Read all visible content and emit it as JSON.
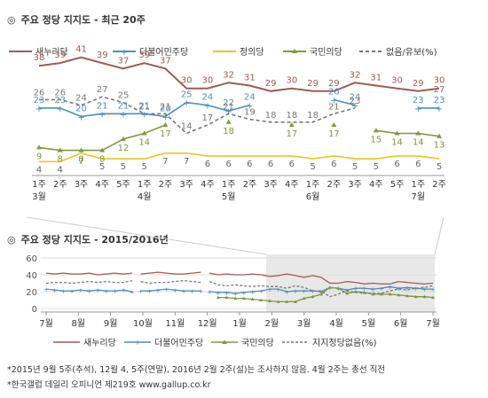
{
  "colors": {
    "saenuri": "#a05a55",
    "minjoo": "#4f8fbf",
    "justice": "#f2c21b",
    "people": "#7d9a3a",
    "none": "#777777",
    "grid": "#dddddd",
    "shade": "#e8e8e8"
  },
  "title1": "주요 정당 지지도 - 최근 20주",
  "title1_mark": "◎",
  "title2": "주요 정당 지지도 - 2015/2016년",
  "title2_mark": "◎",
  "footnote1": "*2015년 9월 5주(추석), 12월 4, 5주(연말), 2016년 2월 2주(설)는 조사하지 않음. 4월 2주는 총선 직전",
  "footnote2": "*한국갤럽 데일리 오피니언 제219호 www.gallup.co.kr",
  "chart_data": [
    {
      "type": "line",
      "legend": [
        "새누리당",
        "더불어민주당",
        "정의당",
        "국민의당",
        "없음/유보(%)"
      ],
      "x": [
        "1주",
        "2주",
        "3주",
        "4주",
        "5주",
        "1주",
        "2주",
        "3주",
        "4주",
        "1주",
        "2주",
        "3주",
        "4주",
        "1주",
        "2주",
        "3주",
        "4주",
        "5주",
        "1주",
        "2주"
      ],
      "month_labels": [
        {
          "index": 0,
          "label": "3월"
        },
        {
          "index": 5,
          "label": "4월"
        },
        {
          "index": 9,
          "label": "5월"
        },
        {
          "index": 13,
          "label": "6월"
        },
        {
          "index": 18,
          "label": "7월"
        }
      ],
      "series": [
        {
          "name": "새누리당",
          "key": "saenuri",
          "values": [
            38,
            39,
            41,
            39,
            37,
            39,
            37,
            30,
            30,
            32,
            31,
            29,
            30,
            29,
            29,
            32,
            31,
            30,
            29,
            30
          ]
        },
        {
          "name": "더불어민주당",
          "key": "minjoo",
          "values": [
            23,
            23,
            20,
            21,
            21,
            21,
            20,
            25,
            24,
            22,
            24,
            null,
            null,
            null,
            26,
            24,
            null,
            null,
            23,
            23
          ]
        },
        {
          "name": "정의당",
          "key": "justice",
          "values": [
            4,
            4,
            7,
            5,
            5,
            5,
            7,
            7,
            6,
            6,
            6,
            6,
            6,
            5,
            6,
            5,
            5,
            6,
            6,
            5
          ]
        },
        {
          "name": "국민의당",
          "key": "people",
          "values": [
            9,
            8,
            8,
            8,
            12,
            14,
            17,
            null,
            null,
            18,
            null,
            null,
            17,
            null,
            17,
            null,
            15,
            14,
            14,
            13
          ]
        },
        {
          "name": "없음/유보(%)",
          "key": "none",
          "dashed": true,
          "values": [
            26,
            26,
            24,
            27,
            25,
            21,
            21,
            14,
            17,
            21,
            19,
            18,
            18,
            18,
            21,
            23,
            null,
            null,
            null,
            27
          ]
        }
      ],
      "ylim": [
        0,
        45
      ]
    },
    {
      "type": "line",
      "legend": [
        "새누리당",
        "더불어민주당",
        "국민의당",
        "지지정당없음(%)"
      ],
      "x_ticks": [
        "7월",
        "8월",
        "9월",
        "10월",
        "11월",
        "12월",
        "1월",
        "2월",
        "3월",
        "4월",
        "5월",
        "6월",
        "7월"
      ],
      "yticks": [
        0,
        20,
        40,
        60
      ],
      "ylim": [
        0,
        60
      ],
      "series": [
        {
          "name": "새누리당",
          "key": "saenuri",
          "values": [
            42,
            41,
            42,
            41,
            41,
            42,
            40,
            41,
            42,
            41,
            42,
            41,
            42,
            43,
            42,
            41,
            41,
            42,
            43,
            42,
            40,
            41,
            40,
            40,
            41,
            40,
            38,
            39,
            41,
            39,
            37,
            39,
            37,
            30,
            30,
            32,
            31,
            29,
            30,
            29,
            29,
            32,
            31,
            30,
            29,
            30
          ]
        },
        {
          "name": "더불어민주당",
          "key": "minjoo",
          "values": [
            23,
            22,
            21,
            21,
            22,
            21,
            22,
            21,
            21,
            22,
            20,
            21,
            21,
            22,
            23,
            22,
            21,
            21,
            21,
            20,
            19,
            19,
            18,
            19,
            20,
            21,
            23,
            23,
            20,
            21,
            21,
            21,
            20,
            25,
            24,
            22,
            24,
            24,
            23,
            24,
            26,
            24,
            25,
            24,
            23,
            23
          ]
        },
        {
          "name": "국민의당",
          "key": "people",
          "values": [
            null,
            null,
            null,
            null,
            null,
            null,
            null,
            null,
            null,
            null,
            null,
            null,
            null,
            null,
            null,
            null,
            null,
            null,
            null,
            null,
            13,
            13,
            12,
            12,
            11,
            10,
            9,
            8,
            8,
            8,
            12,
            14,
            17,
            25,
            24,
            18,
            20,
            19,
            17,
            17,
            17,
            16,
            15,
            14,
            14,
            13
          ]
        },
        {
          "name": "지지정당없음(%)",
          "key": "none",
          "dashed": true,
          "values": [
            30,
            31,
            31,
            30,
            31,
            32,
            31,
            32,
            31,
            31,
            33,
            32,
            30,
            31,
            31,
            32,
            33,
            32,
            31,
            32,
            28,
            27,
            28,
            27,
            26,
            27,
            26,
            26,
            24,
            27,
            25,
            21,
            21,
            14,
            17,
            21,
            19,
            18,
            18,
            18,
            21,
            23,
            22,
            24,
            25,
            27
          ]
        }
      ]
    }
  ]
}
